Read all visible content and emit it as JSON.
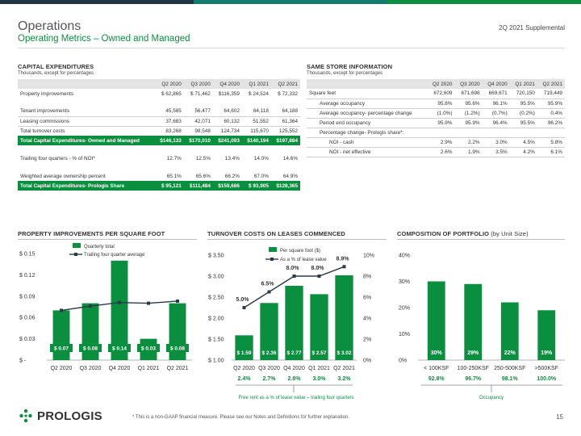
{
  "colors": {
    "green": "#0a8f3e",
    "dark_navy": "#243447",
    "teal": "#137a6e",
    "gray_header": "#e3e3e3",
    "line": "#2b3a4a"
  },
  "header": {
    "title": "Operations",
    "subtitle": "Operating Metrics – Owned and Managed",
    "supplemental": "2Q 2021 Supplemental"
  },
  "capex": {
    "title": "CAPITAL EXPENDITURES",
    "note": "Thousands, except for percentages",
    "columns": [
      "Q2 2020",
      "Q3 2020",
      "Q4 2020",
      "Q1 2021",
      "Q2 2021"
    ],
    "rows": [
      {
        "label": "Property improvements",
        "values": [
          "$ 62,865",
          "$ 71,462",
          "$116,359",
          "$ 24,524",
          "$ 72,332"
        ]
      },
      {
        "label": "Tenant improvements",
        "values": [
          "45,585",
          "56,477",
          "64,602",
          "64,118",
          "64,188"
        ]
      },
      {
        "label": "Leasing commissions",
        "values": [
          "37,683",
          "42,071",
          "60,132",
          "51,552",
          "61,364"
        ]
      },
      {
        "label": "Total turnover costs",
        "values": [
          "83,268",
          "98,548",
          "124,734",
          "115,670",
          "125,552"
        ]
      },
      {
        "label": "Total Capital Expenditures- Owned and Managed",
        "values": [
          "$146,133",
          "$170,010",
          "$241,093",
          "$140,194",
          "$197,884"
        ]
      },
      {
        "label": "Trailing four quarters - % of NOI*",
        "values": [
          "12.7%",
          "12.5%",
          "13.4%",
          "14.0%",
          "14.6%"
        ]
      },
      {
        "label": "Weighted average ownership percent",
        "values": [
          "65.1%",
          "65.6%",
          "66.2%",
          "67.0%",
          "64.9%"
        ]
      },
      {
        "label": "Total Capital Expenditures- Prologis Share",
        "values": [
          "$ 95,121",
          "$111,484",
          "$159,686",
          "$ 93,905",
          "$128,365"
        ]
      }
    ]
  },
  "samestore": {
    "title": "SAME STORE INFORMATION",
    "note": "Thousands, except for percentages",
    "columns": [
      "Q2 2020",
      "Q3 2020",
      "Q4 2020",
      "Q1 2021",
      "Q2 2021"
    ],
    "rows": [
      {
        "label": "Square feet",
        "values": [
          "672,609",
          "671,698",
          "669,671",
          "720,150",
          "719,449"
        ]
      },
      {
        "label": "Average occupancy",
        "values": [
          "95.8%",
          "95.6%",
          "96.1%",
          "95.5%",
          "95.9%"
        ]
      },
      {
        "label": "Average occupancy- percentage change",
        "values": [
          "(1.0%)",
          "(1.2%)",
          "(0.7%)",
          "(0.2%)",
          "0.4%"
        ]
      },
      {
        "label": "Period end occupancy",
        "values": [
          "95.9%",
          "95.9%",
          "96.4%",
          "95.5%",
          "96.2%"
        ]
      },
      {
        "label": "Percentage change- Prologis share*:",
        "values": [
          "",
          "",
          "",
          "",
          ""
        ]
      },
      {
        "label": "NOI - cash",
        "values": [
          "2.9%",
          "2.2%",
          "3.0%",
          "4.5%",
          "5.8%"
        ]
      },
      {
        "label": "NOI - net effective",
        "values": [
          "2.6%",
          "1.9%",
          "3.5%",
          "4.2%",
          "6.1%"
        ]
      }
    ]
  },
  "chart_titles": {
    "ppsf": "PROPERTY IMPROVEMENTS PER SQUARE FOOT",
    "turnover": "TURNOVER COSTS ON LEASES COMMENCED",
    "composition_bold": "COMPOSITION OF PORTFOLIO",
    "composition_normal": "(by Unit Size)"
  },
  "chart_data": [
    {
      "type": "bar",
      "categories": [
        "Q2 2020",
        "Q3 2020",
        "Q4 2020",
        "Q1 2021",
        "Q2 2021"
      ],
      "series": [
        {
          "name": "Quarterly total",
          "values": [
            0.07,
            0.08,
            0.14,
            0.03,
            0.08
          ],
          "labels": [
            "$ 0.07",
            "$ 0.08",
            "$ 0.14",
            "$ 0.03",
            "$ 0.08"
          ]
        },
        {
          "name": "Trailing four quarter average",
          "type": "line",
          "values": [
            0.07,
            0.076,
            0.081,
            0.08,
            0.083
          ]
        }
      ],
      "ylim": [
        0,
        0.15
      ],
      "yticks": [
        "$ -",
        "$ 0.03",
        "$ 0.06",
        "$ 0.09",
        "$ 0.12",
        "$ 0.15"
      ],
      "legend": "top"
    },
    {
      "type": "bar",
      "categories": [
        "Q2 2020",
        "Q3 2020",
        "Q4 2020",
        "Q1 2021",
        "Q2 2021"
      ],
      "series": [
        {
          "name": "Per square foot ($)",
          "values": [
            1.59,
            2.36,
            2.77,
            2.57,
            3.02
          ],
          "labels": [
            "$ 1.59",
            "$ 2.36",
            "$ 2.77",
            "$ 2.57",
            "$ 3.02"
          ]
        },
        {
          "name": "As a % of lease value",
          "type": "line",
          "axis": "right",
          "values": [
            5.0,
            6.5,
            8.0,
            8.0,
            8.9
          ],
          "labels": [
            "5.0%",
            "6.5%",
            "8.0%",
            "8.0%",
            "8.9%"
          ]
        }
      ],
      "ylim": [
        1.0,
        3.5
      ],
      "yticks": [
        "$ 1.00",
        "$ 1.50",
        "$ 2.00",
        "$ 2.50",
        "$ 3.00",
        "$ 3.50"
      ],
      "y2lim": [
        0,
        10
      ],
      "y2ticks": [
        "0%",
        "2%",
        "4%",
        "6%",
        "8%",
        "10%"
      ],
      "free_rent": [
        "2.4%",
        "2.7%",
        "2.8%",
        "3.0%",
        "3.2%"
      ],
      "free_rent_label": "Free rent as a % of lease value – trailing four quarters",
      "legend": "top"
    },
    {
      "type": "bar",
      "categories": [
        "< 100KSF",
        "100-250KSF",
        "250-500KSF",
        ">500KSF"
      ],
      "values": [
        30,
        29,
        22,
        19
      ],
      "labels": [
        "30%",
        "29%",
        "22%",
        "19%"
      ],
      "ylim": [
        0,
        40
      ],
      "yticks": [
        "0%",
        "10%",
        "20%",
        "30%",
        "40%"
      ],
      "occupancy": [
        "92.8%",
        "96.7%",
        "98.1%",
        "100.0%"
      ],
      "occupancy_label": "Occupancy"
    }
  ],
  "footer": {
    "note": "* This is a non-GAAP financial measure. Please see our Notes and Definitions for further explanation.",
    "page": "15",
    "logo_text": "PROLOGIS"
  }
}
